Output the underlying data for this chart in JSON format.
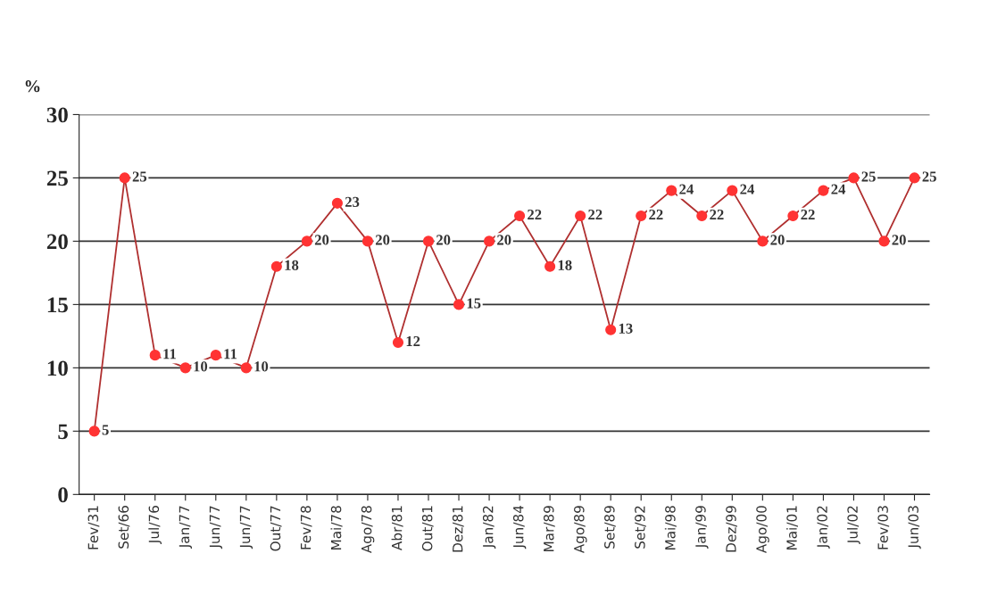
{
  "chart_data": {
    "type": "line",
    "ylabel": "%",
    "categories": [
      "Fev/31",
      "Set/66",
      "Jul/76",
      "Jan/77",
      "Jun/77",
      "Jun/77",
      "Out/77",
      "Fev/78",
      "Mai/78",
      "Ago/78",
      "Abr/81",
      "Out/81",
      "Dez/81",
      "Jan/82",
      "Jun/84",
      "Mar/89",
      "Ago/89",
      "Set/89",
      "Set/92",
      "Mai/98",
      "Jan/99",
      "Dez/99",
      "Ago/00",
      "Mai/01",
      "Jan/02",
      "Jul/02",
      "Fev/03",
      "Jun/03"
    ],
    "series": [
      {
        "color": "#ff3333",
        "values": [
          5,
          25,
          11,
          10,
          11,
          10,
          18,
          20,
          23,
          20,
          12,
          20,
          15,
          20,
          22,
          18,
          22,
          13,
          22,
          24,
          22,
          24,
          20,
          22,
          24,
          25,
          20,
          25
        ]
      }
    ],
    "ylim": [
      0,
      30
    ],
    "yticks": [
      0,
      5,
      10,
      15,
      20,
      25,
      30
    ],
    "grid": "y",
    "marker": "circle",
    "line_style": "solid",
    "data_labels": true
  }
}
